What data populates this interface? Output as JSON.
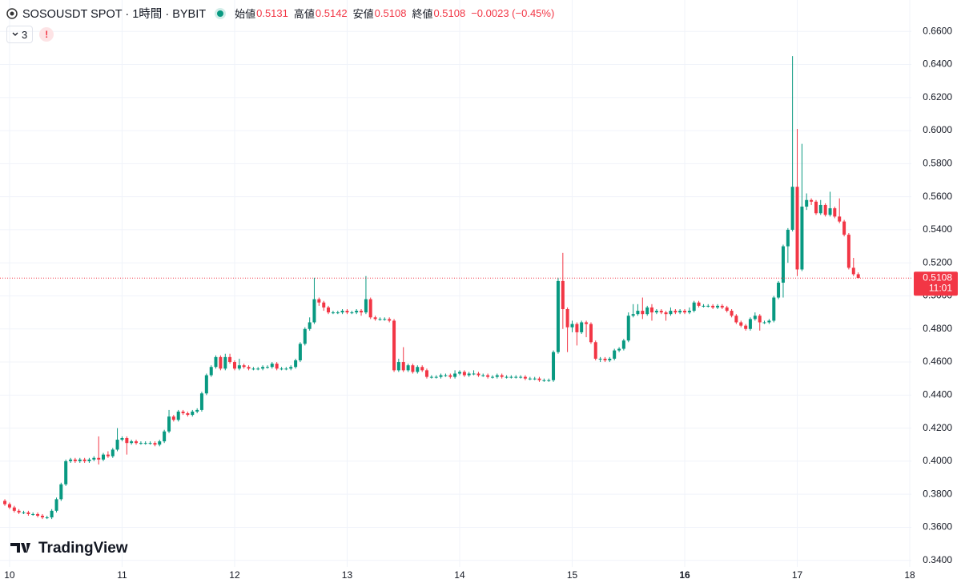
{
  "chart_data": {
    "type": "candlestick",
    "title": "SOSOUSDT SPOT · 1時間 · BYBIT",
    "ohlc_legend": [
      {
        "label": "始値",
        "value": 0.5131
      },
      {
        "label": "高値",
        "value": 0.5142
      },
      {
        "label": "安値",
        "value": 0.5108
      },
      {
        "label": "終値",
        "value": 0.5108
      }
    ],
    "change": "−0.0023 (−0.45%)",
    "indicator_count": "3",
    "alert_badge": "!",
    "watermark": "TradingView",
    "last_price": {
      "value": 0.5108,
      "label": "0.5108"
    },
    "countdown": "11:01",
    "up_color": "#089981",
    "down_color": "#f23645",
    "grid": true,
    "xlim": [
      9.915,
      18.014
    ],
    "xticks": [
      10,
      11,
      12,
      13,
      14,
      15,
      16,
      17,
      18
    ],
    "ylim": [
      0.336,
      0.679
    ],
    "yticks": [
      {
        "value": 0.34,
        "label": "0.3400"
      },
      {
        "value": 0.36,
        "label": "0.3600"
      },
      {
        "value": 0.38,
        "label": "0.3800"
      },
      {
        "value": 0.4,
        "label": "0.4000"
      },
      {
        "value": 0.42,
        "label": "0.4200"
      },
      {
        "value": 0.44,
        "label": "0.4400"
      },
      {
        "value": 0.46,
        "label": "0.4600"
      },
      {
        "value": 0.48,
        "label": "0.4800"
      },
      {
        "value": 0.5,
        "label": "0.5000"
      },
      {
        "value": 0.52,
        "label": "0.5200"
      },
      {
        "value": 0.54,
        "label": "0.5400"
      },
      {
        "value": 0.56,
        "label": "0.5600"
      },
      {
        "value": 0.58,
        "label": "0.5800"
      },
      {
        "value": 0.6,
        "label": "0.6000"
      },
      {
        "value": 0.62,
        "label": "0.6200"
      },
      {
        "value": 0.64,
        "label": "0.6400"
      },
      {
        "value": 0.66,
        "label": "0.6600"
      }
    ],
    "x": [
      9.958,
      10,
      10.042,
      10.083,
      10.125,
      10.167,
      10.208,
      10.25,
      10.292,
      10.333,
      10.375,
      10.417,
      10.458,
      10.5,
      10.542,
      10.583,
      10.625,
      10.667,
      10.708,
      10.75,
      10.792,
      10.833,
      10.875,
      10.917,
      10.958,
      11,
      11.042,
      11.083,
      11.125,
      11.167,
      11.208,
      11.25,
      11.292,
      11.333,
      11.375,
      11.417,
      11.458,
      11.5,
      11.542,
      11.583,
      11.625,
      11.667,
      11.708,
      11.75,
      11.792,
      11.833,
      11.875,
      11.917,
      11.958,
      12,
      12.042,
      12.083,
      12.125,
      12.167,
      12.208,
      12.25,
      12.292,
      12.333,
      12.375,
      12.417,
      12.458,
      12.5,
      12.542,
      12.583,
      12.625,
      12.667,
      12.708,
      12.75,
      12.792,
      12.833,
      12.875,
      12.917,
      12.958,
      13,
      13.042,
      13.083,
      13.125,
      13.167,
      13.208,
      13.25,
      13.292,
      13.333,
      13.375,
      13.417,
      13.458,
      13.5,
      13.542,
      13.583,
      13.625,
      13.667,
      13.708,
      13.75,
      13.792,
      13.833,
      13.875,
      13.917,
      13.958,
      14,
      14.042,
      14.083,
      14.125,
      14.167,
      14.208,
      14.25,
      14.292,
      14.333,
      14.375,
      14.417,
      14.458,
      14.5,
      14.542,
      14.583,
      14.625,
      14.667,
      14.708,
      14.75,
      14.792,
      14.833,
      14.875,
      14.917,
      14.958,
      15,
      15.042,
      15.083,
      15.125,
      15.167,
      15.208,
      15.25,
      15.292,
      15.333,
      15.375,
      15.417,
      15.458,
      15.5,
      15.542,
      15.583,
      15.625,
      15.667,
      15.708,
      15.75,
      15.792,
      15.833,
      15.875,
      15.917,
      15.958,
      16,
      16.042,
      16.083,
      16.125,
      16.167,
      16.208,
      16.25,
      16.292,
      16.333,
      16.375,
      16.417,
      16.458,
      16.5,
      16.542,
      16.583,
      16.625,
      16.667,
      16.708,
      16.75,
      16.792,
      16.833,
      16.875,
      16.917,
      16.958,
      17,
      17.042,
      17.083,
      17.125,
      17.167,
      17.208,
      17.25,
      17.292,
      17.333,
      17.375,
      17.417,
      17.458,
      17.5,
      17.542
    ],
    "open": [
      0.376,
      0.374,
      0.372,
      0.37,
      0.369,
      0.369,
      0.368,
      0.368,
      0.367,
      0.366,
      0.366,
      0.37,
      0.377,
      0.386,
      0.4,
      0.401,
      0.4,
      0.401,
      0.4,
      0.401,
      0.402,
      0.401,
      0.404,
      0.403,
      0.407,
      0.413,
      0.414,
      0.411,
      0.412,
      0.411,
      0.411,
      0.411,
      0.411,
      0.41,
      0.412,
      0.418,
      0.427,
      0.425,
      0.43,
      0.429,
      0.428,
      0.43,
      0.431,
      0.441,
      0.452,
      0.457,
      0.463,
      0.456,
      0.463,
      0.46,
      0.456,
      0.458,
      0.457,
      0.456,
      0.456,
      0.456,
      0.457,
      0.457,
      0.459,
      0.456,
      0.456,
      0.456,
      0.457,
      0.461,
      0.471,
      0.48,
      0.484,
      0.498,
      0.496,
      0.493,
      0.49,
      0.49,
      0.49,
      0.491,
      0.49,
      0.49,
      0.491,
      0.49,
      0.498,
      0.487,
      0.486,
      0.486,
      0.486,
      0.485,
      0.455,
      0.46,
      0.455,
      0.458,
      0.454,
      0.457,
      0.455,
      0.451,
      0.451,
      0.451,
      0.452,
      0.452,
      0.451,
      0.453,
      0.454,
      0.452,
      0.453,
      0.453,
      0.452,
      0.452,
      0.451,
      0.451,
      0.452,
      0.451,
      0.451,
      0.451,
      0.451,
      0.451,
      0.45,
      0.45,
      0.45,
      0.449,
      0.449,
      0.449,
      0.466,
      0.509,
      0.492,
      0.481,
      0.483,
      0.478,
      0.484,
      0.483,
      0.472,
      0.462,
      0.462,
      0.461,
      0.462,
      0.467,
      0.468,
      0.473,
      0.488,
      0.489,
      0.491,
      0.489,
      0.493,
      0.49,
      0.491,
      0.49,
      0.489,
      0.491,
      0.49,
      0.491,
      0.49,
      0.491,
      0.496,
      0.494,
      0.494,
      0.494,
      0.493,
      0.494,
      0.493,
      0.491,
      0.488,
      0.484,
      0.482,
      0.48,
      0.486,
      0.488,
      0.484,
      0.484,
      0.485,
      0.499,
      0.508,
      0.53,
      0.54,
      0.566,
      0.516,
      0.554,
      0.558,
      0.557,
      0.55,
      0.555,
      0.549,
      0.553,
      0.548,
      0.545,
      0.537,
      0.517,
      0.5131
    ],
    "high": [
      0.377,
      0.375,
      0.373,
      0.371,
      0.37,
      0.37,
      0.369,
      0.369,
      0.368,
      0.367,
      0.371,
      0.378,
      0.387,
      0.401,
      0.402,
      0.402,
      0.402,
      0.402,
      0.402,
      0.403,
      0.415,
      0.405,
      0.406,
      0.408,
      0.42,
      0.415,
      0.415,
      0.413,
      0.413,
      0.412,
      0.412,
      0.412,
      0.412,
      0.413,
      0.419,
      0.431,
      0.428,
      0.431,
      0.431,
      0.43,
      0.431,
      0.432,
      0.442,
      0.453,
      0.458,
      0.464,
      0.464,
      0.465,
      0.465,
      0.461,
      0.462,
      0.459,
      0.458,
      0.457,
      0.457,
      0.458,
      0.458,
      0.46,
      0.46,
      0.457,
      0.457,
      0.458,
      0.462,
      0.472,
      0.481,
      0.487,
      0.511,
      0.499,
      0.497,
      0.494,
      0.491,
      0.491,
      0.492,
      0.492,
      0.491,
      0.492,
      0.492,
      0.512,
      0.499,
      0.488,
      0.487,
      0.487,
      0.487,
      0.486,
      0.462,
      0.469,
      0.459,
      0.459,
      0.458,
      0.458,
      0.456,
      0.452,
      0.452,
      0.453,
      0.453,
      0.453,
      0.455,
      0.455,
      0.455,
      0.454,
      0.455,
      0.454,
      0.453,
      0.453,
      0.452,
      0.453,
      0.453,
      0.452,
      0.452,
      0.452,
      0.452,
      0.452,
      0.451,
      0.451,
      0.451,
      0.45,
      0.45,
      0.467,
      0.511,
      0.526,
      0.493,
      0.485,
      0.484,
      0.485,
      0.485,
      0.484,
      0.473,
      0.463,
      0.463,
      0.463,
      0.468,
      0.469,
      0.474,
      0.49,
      0.495,
      0.495,
      0.499,
      0.494,
      0.495,
      0.492,
      0.492,
      0.491,
      0.493,
      0.492,
      0.492,
      0.492,
      0.493,
      0.497,
      0.497,
      0.495,
      0.495,
      0.495,
      0.495,
      0.495,
      0.494,
      0.492,
      0.489,
      0.485,
      0.483,
      0.487,
      0.49,
      0.489,
      0.485,
      0.486,
      0.5,
      0.509,
      0.531,
      0.541,
      0.645,
      0.601,
      0.592,
      0.562,
      0.559,
      0.558,
      0.558,
      0.556,
      0.563,
      0.554,
      0.559,
      0.546,
      0.538,
      0.523,
      0.5142
    ],
    "low": [
      0.373,
      0.371,
      0.369,
      0.368,
      0.368,
      0.367,
      0.367,
      0.366,
      0.365,
      0.365,
      0.365,
      0.369,
      0.376,
      0.385,
      0.399,
      0.399,
      0.399,
      0.399,
      0.399,
      0.4,
      0.398,
      0.4,
      0.402,
      0.402,
      0.406,
      0.412,
      0.404,
      0.41,
      0.41,
      0.41,
      0.41,
      0.41,
      0.409,
      0.409,
      0.411,
      0.417,
      0.424,
      0.424,
      0.428,
      0.427,
      0.427,
      0.429,
      0.43,
      0.44,
      0.451,
      0.456,
      0.455,
      0.455,
      0.459,
      0.455,
      0.455,
      0.456,
      0.455,
      0.455,
      0.455,
      0.455,
      0.456,
      0.456,
      0.455,
      0.455,
      0.455,
      0.455,
      0.456,
      0.46,
      0.47,
      0.479,
      0.483,
      0.494,
      0.491,
      0.489,
      0.489,
      0.489,
      0.489,
      0.489,
      0.489,
      0.489,
      0.488,
      0.489,
      0.486,
      0.485,
      0.485,
      0.485,
      0.484,
      0.454,
      0.454,
      0.454,
      0.454,
      0.453,
      0.453,
      0.454,
      0.45,
      0.45,
      0.45,
      0.45,
      0.451,
      0.45,
      0.45,
      0.452,
      0.451,
      0.451,
      0.452,
      0.451,
      0.451,
      0.45,
      0.45,
      0.45,
      0.45,
      0.45,
      0.45,
      0.45,
      0.45,
      0.449,
      0.449,
      0.449,
      0.448,
      0.448,
      0.448,
      0.448,
      0.465,
      0.48,
      0.466,
      0.478,
      0.47,
      0.477,
      0.475,
      0.471,
      0.461,
      0.46,
      0.46,
      0.46,
      0.461,
      0.466,
      0.467,
      0.472,
      0.487,
      0.488,
      0.486,
      0.488,
      0.485,
      0.489,
      0.489,
      0.485,
      0.488,
      0.489,
      0.489,
      0.489,
      0.489,
      0.49,
      0.493,
      0.493,
      0.493,
      0.492,
      0.492,
      0.492,
      0.49,
      0.487,
      0.483,
      0.481,
      0.479,
      0.479,
      0.485,
      0.479,
      0.483,
      0.483,
      0.484,
      0.498,
      0.499,
      0.52,
      0.539,
      0.512,
      0.515,
      0.552,
      0.555,
      0.549,
      0.549,
      0.548,
      0.548,
      0.547,
      0.544,
      0.536,
      0.516,
      0.512,
      0.5108
    ],
    "close": [
      0.374,
      0.372,
      0.37,
      0.369,
      0.369,
      0.368,
      0.368,
      0.367,
      0.366,
      0.366,
      0.37,
      0.377,
      0.386,
      0.4,
      0.401,
      0.4,
      0.401,
      0.4,
      0.401,
      0.402,
      0.401,
      0.404,
      0.403,
      0.407,
      0.413,
      0.414,
      0.411,
      0.412,
      0.411,
      0.411,
      0.411,
      0.411,
      0.41,
      0.412,
      0.418,
      0.427,
      0.425,
      0.43,
      0.429,
      0.428,
      0.43,
      0.431,
      0.441,
      0.452,
      0.457,
      0.463,
      0.456,
      0.463,
      0.46,
      0.456,
      0.458,
      0.457,
      0.456,
      0.456,
      0.456,
      0.457,
      0.457,
      0.459,
      0.456,
      0.456,
      0.456,
      0.457,
      0.461,
      0.471,
      0.48,
      0.484,
      0.498,
      0.496,
      0.493,
      0.49,
      0.49,
      0.49,
      0.491,
      0.49,
      0.49,
      0.491,
      0.49,
      0.498,
      0.487,
      0.486,
      0.486,
      0.486,
      0.485,
      0.455,
      0.46,
      0.455,
      0.458,
      0.454,
      0.457,
      0.455,
      0.451,
      0.451,
      0.451,
      0.452,
      0.452,
      0.451,
      0.453,
      0.454,
      0.452,
      0.453,
      0.453,
      0.452,
      0.452,
      0.451,
      0.451,
      0.452,
      0.451,
      0.451,
      0.451,
      0.451,
      0.451,
      0.45,
      0.45,
      0.45,
      0.449,
      0.449,
      0.449,
      0.466,
      0.509,
      0.492,
      0.481,
      0.483,
      0.478,
      0.484,
      0.483,
      0.472,
      0.462,
      0.462,
      0.461,
      0.462,
      0.467,
      0.468,
      0.473,
      0.488,
      0.489,
      0.491,
      0.489,
      0.493,
      0.49,
      0.491,
      0.49,
      0.489,
      0.491,
      0.49,
      0.491,
      0.49,
      0.491,
      0.496,
      0.494,
      0.494,
      0.494,
      0.493,
      0.494,
      0.493,
      0.491,
      0.488,
      0.484,
      0.482,
      0.48,
      0.486,
      0.488,
      0.484,
      0.484,
      0.485,
      0.499,
      0.508,
      0.53,
      0.54,
      0.566,
      0.516,
      0.554,
      0.558,
      0.557,
      0.55,
      0.555,
      0.549,
      0.553,
      0.548,
      0.545,
      0.537,
      0.517,
      0.5131,
      0.5108
    ]
  }
}
